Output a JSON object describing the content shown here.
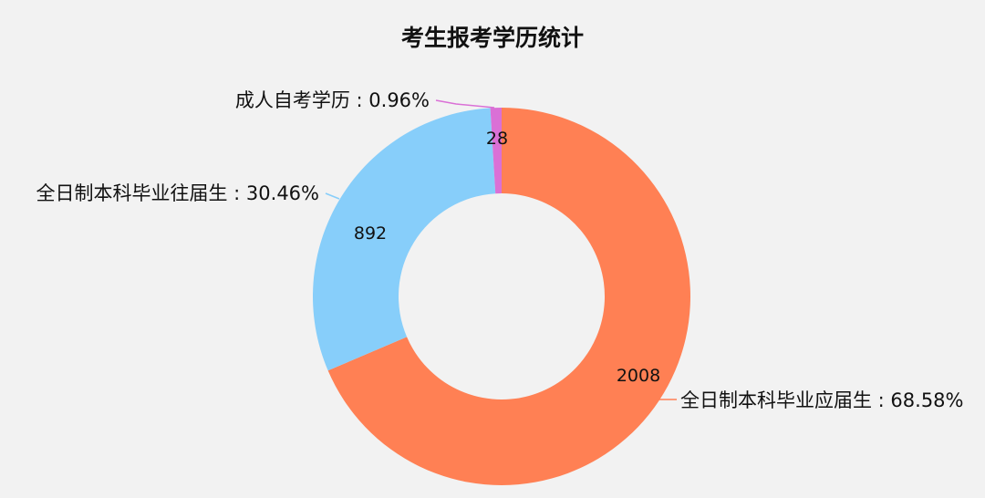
{
  "chart_data": {
    "type": "pie",
    "variant": "donut",
    "title": "考生报考学历统计",
    "slices": [
      {
        "name": "全日制本科毕业应届生",
        "value": 2008,
        "percent_label": "68.58%",
        "color": "#ff8054"
      },
      {
        "name": "全日制本科毕业往届生",
        "value": 892,
        "percent_label": "30.46%",
        "color": "#87cefa"
      },
      {
        "name": "成人自考学历",
        "value": 28,
        "percent_label": "0.96%",
        "color": "#da70d6"
      }
    ]
  }
}
